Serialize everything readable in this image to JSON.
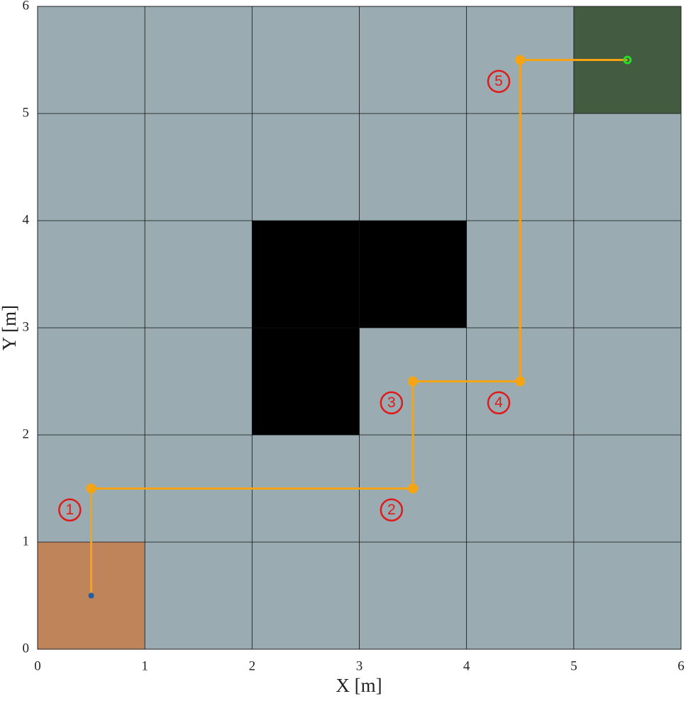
{
  "chart_data": {
    "type": "line",
    "xlabel": "X [m]",
    "ylabel": "Y [m]",
    "xlim": [
      0,
      6
    ],
    "ylim": [
      0,
      6
    ],
    "xticks": [
      0,
      1,
      2,
      3,
      4,
      5,
      6
    ],
    "yticks": [
      0,
      1,
      2,
      3,
      4,
      5,
      6
    ],
    "grid": true,
    "background": "#9aabb1",
    "regions": [
      {
        "x": [
          0,
          1,
          1,
          0
        ],
        "y": [
          0,
          0,
          1,
          1
        ],
        "color": "#c0845a"
      },
      {
        "x": [
          5,
          6,
          6,
          5
        ],
        "y": [
          5,
          5,
          6,
          6
        ],
        "color": "#435c41"
      },
      {
        "x": [
          2,
          3,
          3,
          4,
          4,
          2
        ],
        "y": [
          2,
          2,
          3,
          3,
          4,
          4
        ],
        "color": "#000000"
      }
    ],
    "x": [
      0.5,
      0.5,
      3.5,
      3.5,
      4.5,
      4.5,
      5.5
    ],
    "y": [
      0.5,
      1.5,
      1.5,
      2.5,
      2.5,
      5.5,
      5.5
    ],
    "color": "#f5a514",
    "start": {
      "x": 0.5,
      "y": 0.5,
      "color": "#1f5fa8"
    },
    "goal": {
      "x": 5.5,
      "y": 5.5,
      "color": "#22e022"
    },
    "annotations": [
      {
        "text": "1",
        "x": 0.3,
        "y": 1.3,
        "color": "#e01a1a"
      },
      {
        "text": "2",
        "x": 3.3,
        "y": 1.3,
        "color": "#e01a1a"
      },
      {
        "text": "3",
        "x": 3.3,
        "y": 2.3,
        "color": "#e01a1a"
      },
      {
        "text": "4",
        "x": 4.3,
        "y": 2.3,
        "color": "#e01a1a"
      },
      {
        "text": "5",
        "x": 4.3,
        "y": 5.3,
        "color": "#e01a1a"
      }
    ]
  }
}
